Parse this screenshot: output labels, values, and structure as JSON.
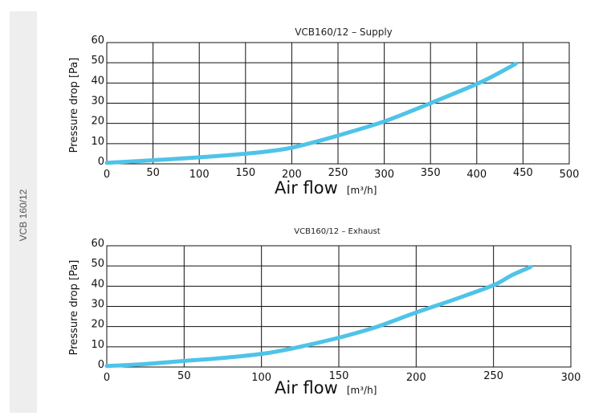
{
  "side_label": "VCB 160/12",
  "curve_color": "#4fc3e8",
  "chart_data": [
    {
      "type": "line",
      "title": "VCB160/12 – Supply",
      "ylabel": "Pressure drop [Pa]",
      "xlabel": "Air flow",
      "xlabel_unit": "[m³/h]",
      "xlim": [
        0,
        500
      ],
      "ylim": [
        0,
        60
      ],
      "xticks": [
        0,
        50,
        100,
        150,
        200,
        250,
        300,
        350,
        400,
        450,
        500
      ],
      "yticks": [
        0,
        10,
        20,
        30,
        40,
        50,
        60
      ],
      "grid": true,
      "series": [
        {
          "x": [
            0,
            50,
            100,
            150,
            180,
            200,
            225,
            250,
            300,
            350,
            400,
            420,
            442
          ],
          "y": [
            0.5,
            1.8,
            3.2,
            5.0,
            6.5,
            8.0,
            10.8,
            14.0,
            21.0,
            30.0,
            39.5,
            44.0,
            49.5
          ]
        }
      ]
    },
    {
      "type": "line",
      "title": "VCB160/12 – Exhaust",
      "ylabel": "Pressure drop [Pa]",
      "xlabel": "Air flow",
      "xlabel_unit": "[m³/h]",
      "xlim": [
        0,
        300
      ],
      "ylim": [
        0,
        60
      ],
      "xticks": [
        0,
        50,
        100,
        150,
        200,
        250,
        300
      ],
      "yticks": [
        0,
        10,
        20,
        30,
        40,
        50,
        60
      ],
      "grid": true,
      "series": [
        {
          "x": [
            0,
            25,
            50,
            75,
            100,
            112,
            125,
            150,
            175,
            200,
            225,
            250,
            262,
            274
          ],
          "y": [
            0.5,
            1.5,
            3.0,
            4.5,
            6.5,
            8.0,
            10.0,
            14.5,
            20.0,
            27.0,
            33.5,
            40.5,
            45.5,
            49.5
          ]
        }
      ]
    }
  ]
}
